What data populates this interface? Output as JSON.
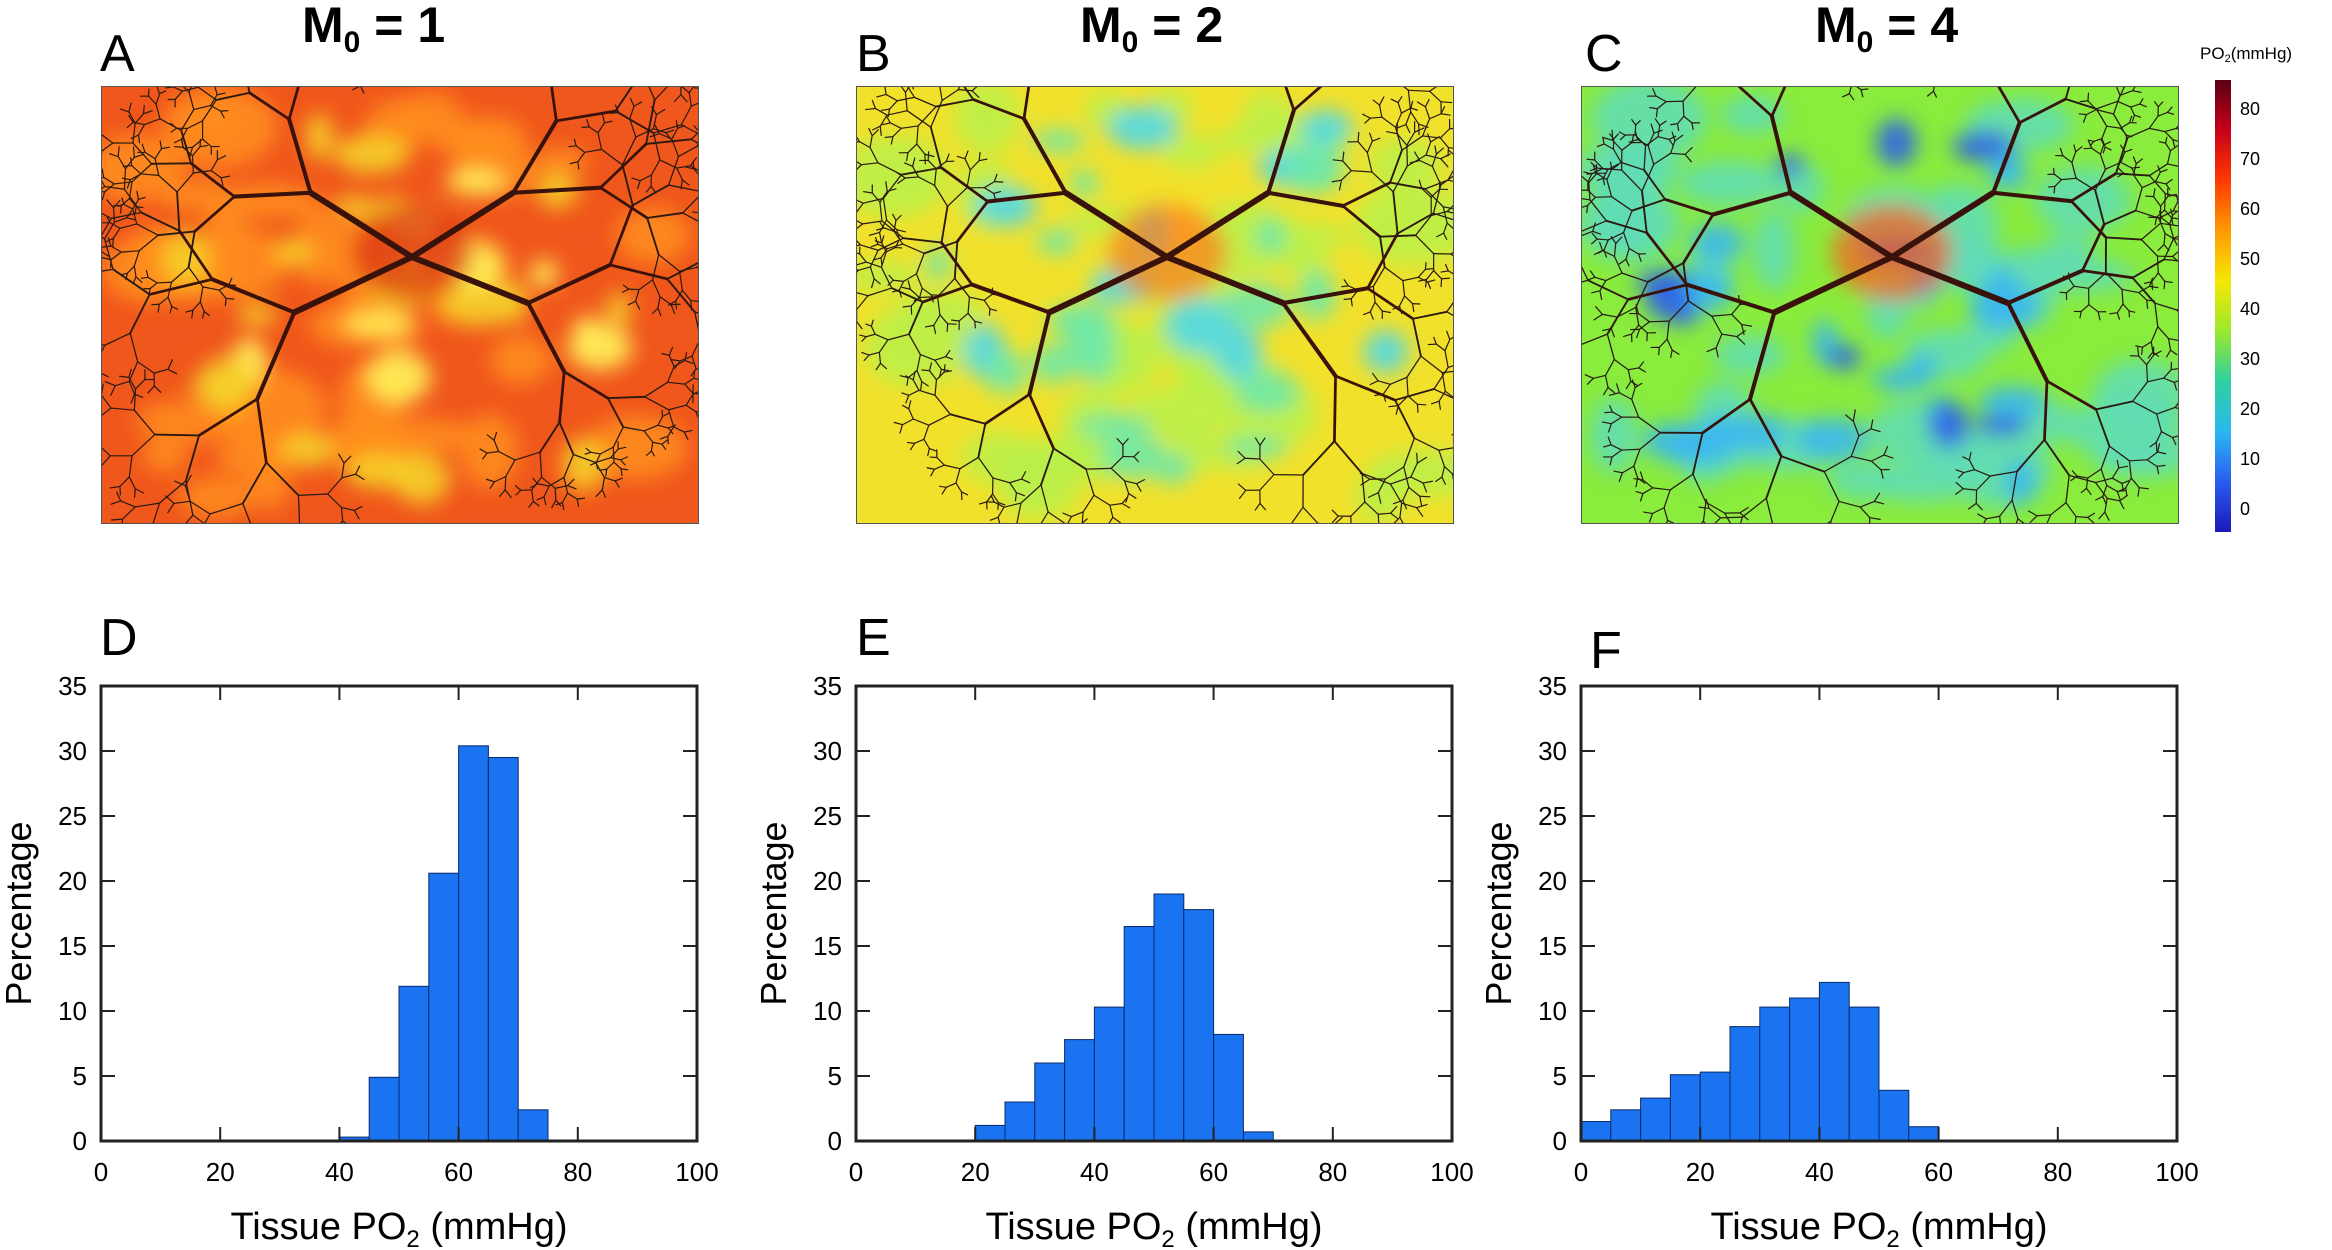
{
  "figure": {
    "panels_top": [
      {
        "letter": "A",
        "title_main": "M",
        "title_sub": "0",
        "title_rest": " = 1",
        "field_color": "#f0571c"
      },
      {
        "letter": "B",
        "title_main": "M",
        "title_sub": "0",
        "title_rest": " = 2",
        "field_color": "#f2e12b"
      },
      {
        "letter": "C",
        "title_main": "M",
        "title_sub": "0",
        "title_rest": " = 4",
        "field_color": "#8aec3c"
      }
    ],
    "colorbar": {
      "title_main": "PO",
      "title_sub": "2",
      "title_rest": "(mmHg)",
      "ticks": [
        "80",
        "70",
        "60",
        "50",
        "40",
        "30",
        "20",
        "10",
        "0"
      ],
      "colors": [
        "#5a0012",
        "#c8001a",
        "#ff3a00",
        "#ff9a00",
        "#f5e800",
        "#9be82e",
        "#2fd0a0",
        "#29b8f0",
        "#2a5cf0",
        "#1a1ab8"
      ]
    },
    "histogram_labels": {
      "ylabel": "Percentage",
      "xlabel_main": "Tissue PO",
      "xlabel_sub": "2",
      "xlabel_rest": " (mmHg)"
    }
  },
  "chart_data": [
    {
      "type": "bar",
      "panel": "D",
      "xlim": [
        0,
        100
      ],
      "ylim": [
        0,
        35
      ],
      "xticks": [
        0,
        20,
        40,
        60,
        80,
        100
      ],
      "yticks": [
        0,
        5,
        10,
        15,
        20,
        25,
        30,
        35
      ],
      "bin_width": 5,
      "bin_starts": [
        0,
        5,
        10,
        15,
        20,
        25,
        30,
        35,
        40,
        45,
        50,
        55,
        60,
        65,
        70,
        75,
        80,
        85,
        90,
        95
      ],
      "values": [
        0,
        0,
        0,
        0,
        0,
        0,
        0,
        0,
        0.3,
        4.9,
        11.9,
        20.6,
        30.4,
        29.5,
        2.4,
        0,
        0,
        0,
        0,
        0
      ],
      "bar_color": "#1a73f0",
      "xlabel": "Tissue PO2 (mmHg)",
      "ylabel": "Percentage"
    },
    {
      "type": "bar",
      "panel": "E",
      "xlim": [
        0,
        100
      ],
      "ylim": [
        0,
        35
      ],
      "xticks": [
        0,
        20,
        40,
        60,
        80,
        100
      ],
      "yticks": [
        0,
        5,
        10,
        15,
        20,
        25,
        30,
        35
      ],
      "bin_width": 5,
      "bin_starts": [
        0,
        5,
        10,
        15,
        20,
        25,
        30,
        35,
        40,
        45,
        50,
        55,
        60,
        65,
        70,
        75,
        80,
        85,
        90,
        95
      ],
      "values": [
        0,
        0,
        0,
        0,
        1.2,
        3.0,
        6.0,
        7.8,
        10.3,
        16.5,
        19.0,
        17.8,
        8.2,
        0.7,
        0,
        0,
        0,
        0,
        0,
        0
      ],
      "bar_color": "#1a73f0",
      "xlabel": "Tissue PO2 (mmHg)",
      "ylabel": "Percentage"
    },
    {
      "type": "bar",
      "panel": "F",
      "xlim": [
        0,
        100
      ],
      "ylim": [
        0,
        35
      ],
      "xticks": [
        0,
        20,
        40,
        60,
        80,
        100
      ],
      "yticks": [
        0,
        5,
        10,
        15,
        20,
        25,
        30,
        35
      ],
      "bin_width": 5,
      "bin_starts": [
        0,
        5,
        10,
        15,
        20,
        25,
        30,
        35,
        40,
        45,
        50,
        55,
        60,
        65,
        70,
        75,
        80,
        85,
        90,
        95
      ],
      "values": [
        1.5,
        2.4,
        3.3,
        5.1,
        5.3,
        8.8,
        10.3,
        11.0,
        12.2,
        10.3,
        3.9,
        1.1,
        0,
        0,
        0,
        0,
        0,
        0,
        0,
        0
      ],
      "bar_color": "#1a73f0",
      "xlabel": "Tissue PO2 (mmHg)",
      "ylabel": "Percentage"
    }
  ]
}
